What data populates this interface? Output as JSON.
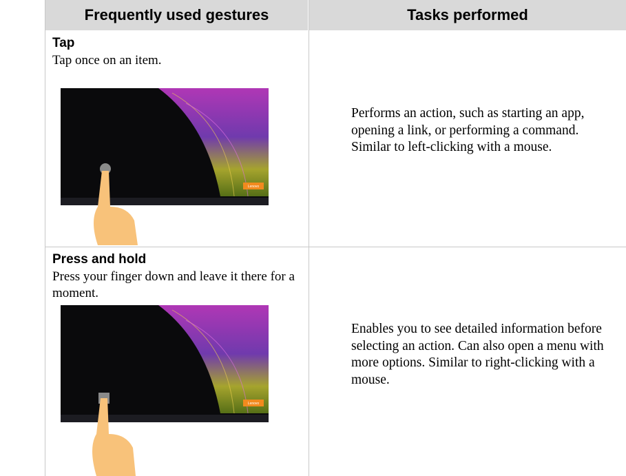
{
  "table": {
    "headers": [
      "Frequently used gestures",
      "Tasks performed"
    ],
    "rows": [
      {
        "gesture": "Tap",
        "description": "Tap once on an item.",
        "badge": "Lenovo",
        "task": "Performs an action, such as starting an app, opening a link, or performing a command. Similar to left-clicking with a mouse."
      },
      {
        "gesture": "Press and hold",
        "description": "Press your finger down and leave it there for a moment.",
        "badge": "Lenovo",
        "task": "Enables you to see detailed information before selecting an action. Can also open a menu with more options. Similar to right-clicking with a mouse."
      }
    ]
  }
}
